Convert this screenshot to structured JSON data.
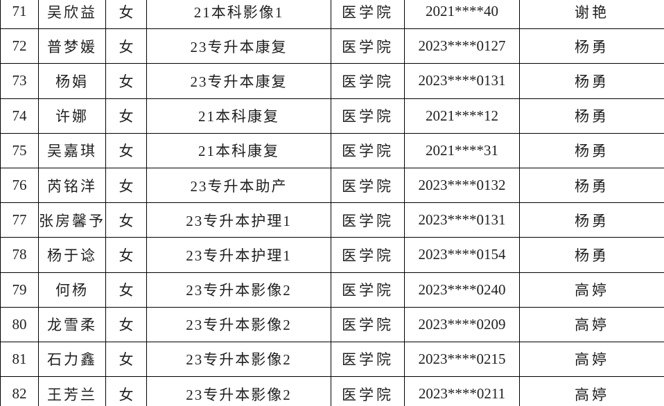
{
  "table": {
    "rows": [
      [
        "71",
        "吴欣益",
        "女",
        "21本科影像1",
        "医学院",
        "2021****40",
        "谢艳"
      ],
      [
        "72",
        "普梦媛",
        "女",
        "23专升本康复",
        "医学院",
        "2023****0127",
        "杨勇"
      ],
      [
        "73",
        "杨娟",
        "女",
        "23专升本康复",
        "医学院",
        "2023****0131",
        "杨勇"
      ],
      [
        "74",
        "许娜",
        "女",
        "21本科康复",
        "医学院",
        "2021****12",
        "杨勇"
      ],
      [
        "75",
        "吴嘉琪",
        "女",
        "21本科康复",
        "医学院",
        "2021****31",
        "杨勇"
      ],
      [
        "76",
        "芮铭洋",
        "女",
        "23专升本助产",
        "医学院",
        "2023****0132",
        "杨勇"
      ],
      [
        "77",
        "张房馨予",
        "女",
        "23专升本护理1",
        "医学院",
        "2023****0131",
        "杨勇"
      ],
      [
        "78",
        "杨于谂",
        "女",
        "23专升本护理1",
        "医学院",
        "2023****0154",
        "杨勇"
      ],
      [
        "79",
        "何杨",
        "女",
        "23专升本影像2",
        "医学院",
        "2023****0240",
        "高婷"
      ],
      [
        "80",
        "龙雪柔",
        "女",
        "23专升本影像2",
        "医学院",
        "2023****0209",
        "高婷"
      ],
      [
        "81",
        "石力鑫",
        "女",
        "23专升本影像2",
        "医学院",
        "2023****0215",
        "高婷"
      ],
      [
        "82",
        "王芳兰",
        "女",
        "23专升本影像2",
        "医学院",
        "2023****0211",
        "高婷"
      ]
    ]
  },
  "colors": {
    "border": "#000000",
    "text": "#1f1f1f",
    "background": "#ffffff"
  }
}
